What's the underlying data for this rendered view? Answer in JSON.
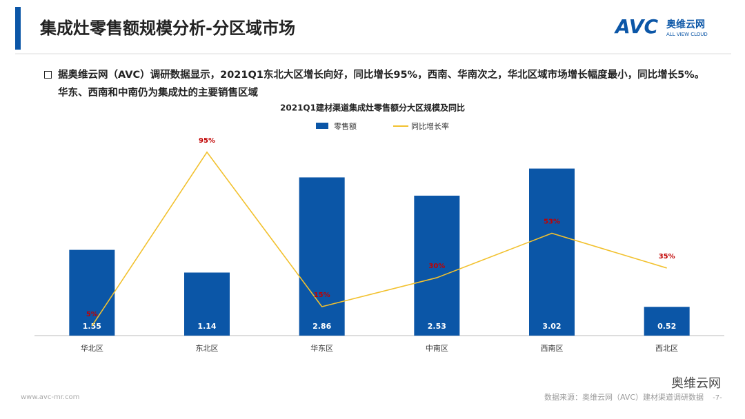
{
  "header": {
    "title": "集成灶零售额规模分析-分区域市场",
    "logo_mark": "AVC",
    "logo_name": "奥维云网",
    "logo_tagline": "ALL VIEW CLOUD"
  },
  "bullet": "据奥维云网（AVC）调研数据显示，2021Q1东北大区增长向好，同比增长95%，西南、华南次之，华北区域市场增长幅度最小，同比增长5%。华东、西南和中南仍为集成灶的主要销售区域",
  "chart_data": {
    "type": "bar",
    "title": "2021Q1建材渠道集成灶零售额分大区规模及同比",
    "categories": [
      "华北区",
      "东北区",
      "华东区",
      "中南区",
      "西南区",
      "西北区"
    ],
    "series": [
      {
        "name": "零售额",
        "type": "bar",
        "color": "#0b56a7",
        "values": [
          1.55,
          1.14,
          2.86,
          2.53,
          3.02,
          0.52
        ]
      },
      {
        "name": "同比增长率",
        "type": "line",
        "axis": "y2",
        "color": "#f2c12e",
        "label_color": "#c00000",
        "values": [
          5,
          95,
          15,
          30,
          53,
          35
        ],
        "value_labels": [
          "5%",
          "95%",
          "15%",
          "30%",
          "53%",
          "35%"
        ]
      }
    ],
    "ylim": [
      0,
      3.7
    ],
    "y2lim": [
      0,
      106
    ],
    "legend": "top"
  },
  "footer": {
    "website": "www.avc-mr.com",
    "source": "数据来源：奥维云网（AVC）建材渠道调研数据",
    "page": "-7-",
    "wechat": "奥维云网"
  }
}
